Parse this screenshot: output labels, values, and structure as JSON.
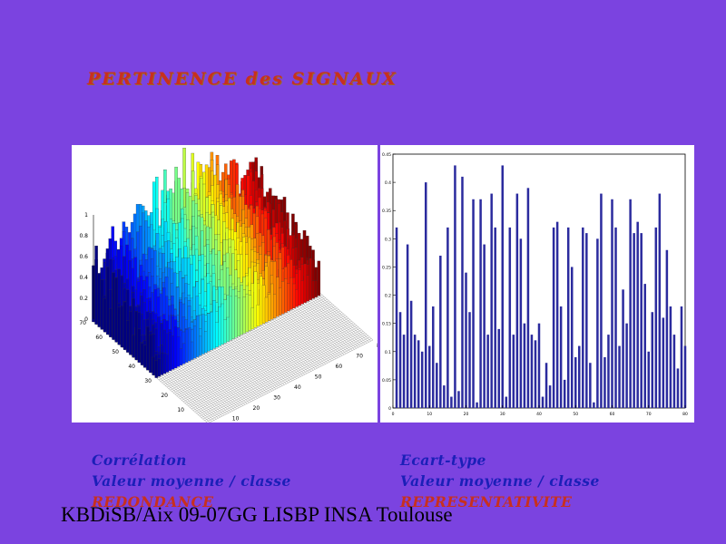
{
  "title": "PERTINENCE des SIGNAUX",
  "footer": "KBDiSB/Aix 09-07GG LISBP INSA Toulouse",
  "left_caption": {
    "line1": "Corrélation",
    "line2": "Valeur moyenne / classe",
    "line3": "REDONDANCE"
  },
  "right_caption": {
    "line1": "Ecart-type",
    "line2": "Valeur moyenne / classe",
    "line3": "REPRESENTATIVITE"
  },
  "colors": {
    "background": "#7b43e0",
    "title": "#c8301e",
    "caption_blue": "#1b1fb8",
    "bar": "#2b2b9e"
  },
  "chart_data": [
    {
      "type": "bar3d",
      "zticks": [
        "0",
        "0.2",
        "0.4",
        "0.6",
        "0.8",
        "1"
      ],
      "zlim": [
        0,
        1
      ],
      "xticks": [
        "10",
        "20",
        "30",
        "40",
        "50",
        "60",
        "70",
        "80"
      ],
      "yticks": [
        "10",
        "20",
        "30",
        "40",
        "50",
        "60",
        "70"
      ],
      "colormap": "jet",
      "grid": true
    },
    {
      "type": "bar",
      "x": [
        1,
        2,
        3,
        4,
        5,
        6,
        7,
        8,
        9,
        10,
        11,
        12,
        13,
        14,
        15,
        16,
        17,
        18,
        19,
        20,
        21,
        22,
        23,
        24,
        25,
        26,
        27,
        28,
        29,
        30,
        31,
        32,
        33,
        34,
        35,
        36,
        37,
        38,
        39,
        40,
        41,
        42,
        43,
        44,
        45,
        46,
        47,
        48,
        49,
        50,
        51,
        52,
        53,
        54,
        55,
        56,
        57,
        58,
        59,
        60,
        61,
        62,
        63,
        64,
        65,
        66,
        67,
        68,
        69,
        70,
        71,
        72,
        73,
        74,
        75,
        76,
        77,
        78,
        79,
        80
      ],
      "values": [
        0.32,
        0.17,
        0.13,
        0.29,
        0.19,
        0.13,
        0.12,
        0.1,
        0.4,
        0.11,
        0.18,
        0.08,
        0.27,
        0.04,
        0.32,
        0.02,
        0.43,
        0.03,
        0.41,
        0.24,
        0.17,
        0.37,
        0.01,
        0.37,
        0.29,
        0.13,
        0.38,
        0.32,
        0.14,
        0.43,
        0.02,
        0.32,
        0.13,
        0.38,
        0.3,
        0.15,
        0.39,
        0.13,
        0.12,
        0.15,
        0.02,
        0.08,
        0.04,
        0.32,
        0.33,
        0.18,
        0.05,
        0.32,
        0.25,
        0.09,
        0.11,
        0.32,
        0.31,
        0.08,
        0.01,
        0.3,
        0.38,
        0.09,
        0.13,
        0.37,
        0.32,
        0.11,
        0.21,
        0.15,
        0.37,
        0.31,
        0.33,
        0.31,
        0.22,
        0.1,
        0.17,
        0.32,
        0.38,
        0.16,
        0.28,
        0.18,
        0.13,
        0.07,
        0.18,
        0.11
      ],
      "yticks": [
        "0",
        "0.05",
        "0.1",
        "0.15",
        "0.2",
        "0.25",
        "0.3",
        "0.35",
        "0.4",
        "0.45"
      ],
      "ylim": [
        0,
        0.45
      ],
      "xticks": [
        "0",
        "10",
        "20",
        "30",
        "40",
        "50",
        "60",
        "70",
        "80"
      ],
      "xlim": [
        0,
        80
      ]
    }
  ]
}
